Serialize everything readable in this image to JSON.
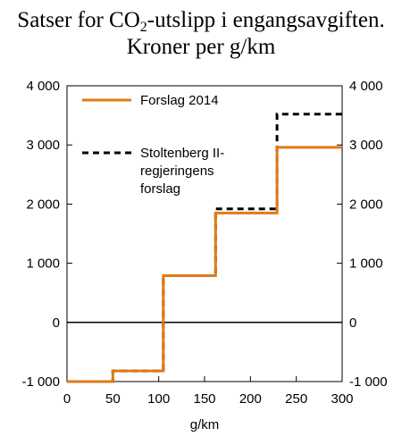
{
  "title": {
    "line1_prefix": "Satser for CO",
    "line1_sub": "2",
    "line1_suffix": "-utslipp i engangsavgiften.",
    "line2": "Kroner per g/km"
  },
  "chart_data": {
    "type": "line",
    "xlabel": "g/km",
    "ylabel": "",
    "xlim": [
      0,
      300
    ],
    "ylim": [
      -1000,
      4000
    ],
    "xticks": [
      0,
      50,
      100,
      150,
      200,
      250,
      300
    ],
    "yticks": [
      -1000,
      0,
      1000,
      2000,
      3000,
      4000
    ],
    "xtick_labels": [
      "0",
      "50",
      "100",
      "150",
      "200",
      "250",
      "300"
    ],
    "ytick_labels": [
      "-1 000",
      "0",
      "1 000",
      "2 000",
      "3 000",
      "4 000"
    ],
    "ytick_labels_right": [
      "-1 000",
      "0",
      "1 000",
      "2 000",
      "3 000",
      "4 000"
    ],
    "zero_line": true,
    "grid": false,
    "legend_position": "top-left",
    "series": [
      {
        "name": "Forslag 2014",
        "color": "#e07b16",
        "style": "solid",
        "x": [
          0,
          50,
          50,
          105,
          105,
          162,
          162,
          229,
          229,
          300
        ],
        "y": [
          -1000,
          -1000,
          -820,
          -820,
          790,
          790,
          1850,
          1850,
          2960,
          2960
        ]
      },
      {
        "name": "Stoltenberg II-regjeringens forslag",
        "name_lines": [
          "Stoltenberg II-",
          "regjeringens",
          "forslag"
        ],
        "color": "#000000",
        "style": "dashed",
        "x": [
          0,
          50,
          50,
          105,
          105,
          162,
          162,
          229,
          229,
          300
        ],
        "y": [
          -1000,
          -1000,
          -820,
          -820,
          790,
          790,
          1920,
          1920,
          3520,
          3520
        ]
      }
    ]
  }
}
